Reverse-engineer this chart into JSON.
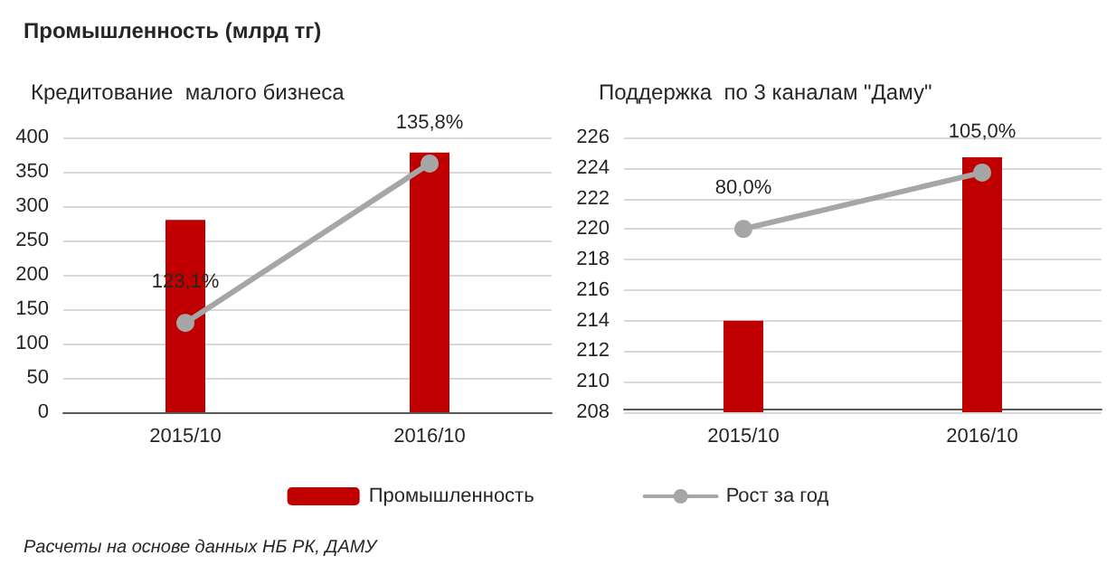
{
  "chart_data": [
    {
      "type": "bar",
      "title": "Промышленность (млрд тг)",
      "subtitle": "Кредитование  малого бизнеса",
      "categories": [
        "2015/10",
        "2016/10"
      ],
      "series": [
        {
          "name": "Промышленность",
          "color": "#c00000",
          "values": [
            280,
            378
          ]
        },
        {
          "name": "Рост за год",
          "type": "line",
          "axis": "y2",
          "color": "#a6a6a6",
          "marker": "circle",
          "values": [
            123.1,
            135.8
          ],
          "value_labels": [
            "123,1%",
            "135,8%"
          ]
        }
      ],
      "ylim": [
        0,
        400
      ],
      "yticks": [
        0,
        50,
        100,
        150,
        200,
        250,
        300,
        350,
        400
      ],
      "grid": "y",
      "legend": "bottom",
      "annotations": [
        "Расчеты на основе данных НБ РК, ДАМУ"
      ]
    },
    {
      "type": "bar",
      "subtitle": "Поддержка  по 3 каналам \"Даму\"",
      "categories": [
        "2015/10",
        "2016/10"
      ],
      "series": [
        {
          "color": "#c00000",
          "values": [
            214.0,
            224.7
          ]
        },
        {
          "type": "line",
          "axis": "y2",
          "color": "#a6a6a6",
          "marker": "circle",
          "values": [
            80.0,
            105.0
          ],
          "value_labels": [
            "80,0%",
            "105,0%"
          ]
        }
      ],
      "ylim": [
        208,
        226
      ],
      "yticks": [
        208,
        210,
        212,
        214,
        216,
        218,
        220,
        222,
        224,
        226
      ],
      "grid": "y"
    }
  ]
}
